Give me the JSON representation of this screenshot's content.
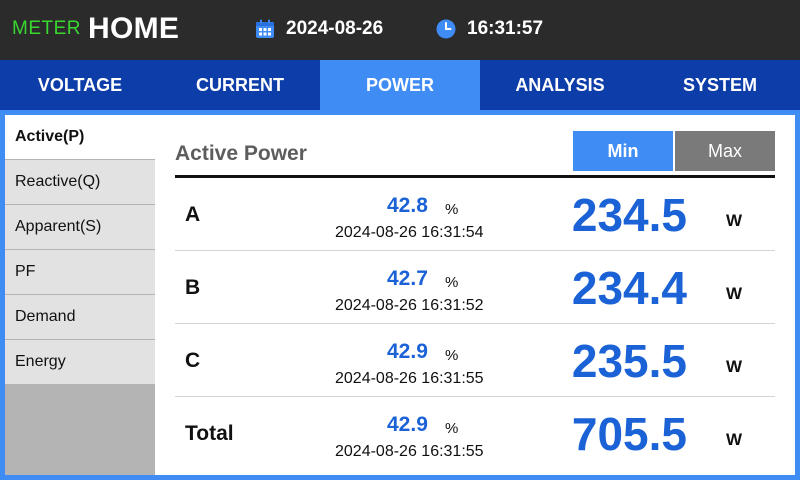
{
  "header": {
    "logo_prefix": "METER",
    "logo_title": "HOME",
    "date": "2024-08-26",
    "time": "16:31:57",
    "date_icon": "calendar-icon",
    "time_icon": "clock-icon"
  },
  "tabs": [
    {
      "label": "VOLTAGE",
      "active": false
    },
    {
      "label": "CURRENT",
      "active": false
    },
    {
      "label": "POWER",
      "active": true
    },
    {
      "label": "ANALYSIS",
      "active": false
    },
    {
      "label": "SYSTEM",
      "active": false
    }
  ],
  "sidebar": {
    "items": [
      {
        "label": "Active(P)",
        "active": true
      },
      {
        "label": "Reactive(Q)",
        "active": false
      },
      {
        "label": "Apparent(S)",
        "active": false
      },
      {
        "label": "PF",
        "active": false
      },
      {
        "label": "Demand",
        "active": false
      },
      {
        "label": "Energy",
        "active": false
      }
    ]
  },
  "panel": {
    "title": "Active Power",
    "min_label": "Min",
    "max_label": "Max",
    "selected": "Min",
    "rows": [
      {
        "phase": "A",
        "percent": "42.8",
        "percent_unit": "%",
        "timestamp": "2024-08-26 16:31:54",
        "value": "234.5",
        "unit": "W"
      },
      {
        "phase": "B",
        "percent": "42.7",
        "percent_unit": "%",
        "timestamp": "2024-08-26 16:31:52",
        "value": "234.4",
        "unit": "W"
      },
      {
        "phase": "C",
        "percent": "42.9",
        "percent_unit": "%",
        "timestamp": "2024-08-26 16:31:55",
        "value": "235.5",
        "unit": "W"
      },
      {
        "phase": "Total",
        "percent": "42.9",
        "percent_unit": "%",
        "timestamp": "2024-08-26 16:31:55",
        "value": "705.5",
        "unit": "W"
      }
    ]
  },
  "colors": {
    "header_bg": "#2b2b2b",
    "logo_green": "#39d82f",
    "tab_bg": "#0d3da8",
    "accent": "#3f8cf5",
    "value_blue": "#1a62d6"
  }
}
